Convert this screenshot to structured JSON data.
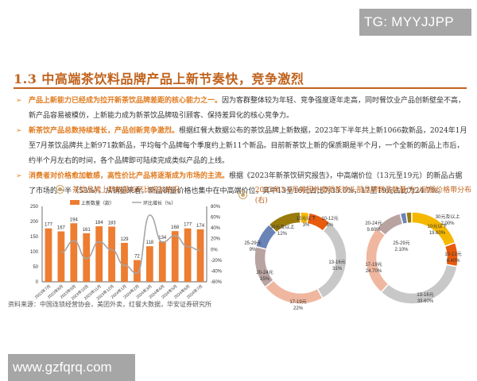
{
  "watermarks": {
    "top": "TG: MYYJJPP",
    "bottom": "www.gzfqrq.com"
  },
  "section_title": "1.3 中高端茶饮料品牌产品上新节奏快，竞争激烈",
  "bullets": [
    {
      "highlight": "产品上新能力已经成为拉开新茶饮品牌差距的核心能力之一。",
      "body": "因为客群整体较为年轻、竞争强度逐年走高，同时餐饮业产品创新壁垒不高，新产品容易被模仿，上新能力成为新茶饮品牌吸引顾客、保持差异化的核心竞争力。"
    },
    {
      "highlight": "新茶饮产品总数持续增长，产品创新竞争激烈。",
      "body": "根据红餐大数据公布的茶饮品牌上新数据，2023年下半年共上新1066款新品，2024年1月至7月茶饮品牌共上新971款新品，平均每个品牌每个季度约上新11个新品。目前新茶饮上新的保质期是半个月，一个全新的新品上市后，约半个月左右的时间，各个品牌即可陆续完成类似产品的上线。"
    },
    {
      "highlight": "消费者对价格愈加敏感，高性价比产品将逐渐成为市场的主流。",
      "body": "根据《2023年新茶饮研究报告》，中高端价位（13元至19元）的新品占据了市场的一半（53%）。从销量来看，新品销量价格也集中在中高端价位，其中13至16元占比为33.6%，17至19元占比为24.7%。"
    }
  ],
  "chart_titles": {
    "left": "茶饮品牌上新数量与环比增长情况",
    "right": "2023年3-6月美团外卖新茶饮头部品牌新品数量(左)/销量价格带分布(右)"
  },
  "source": "资料来源：中国连锁经营协会，美团外卖，红餐大数据，华安证券研究所",
  "chart_data": [
    {
      "type": "bar",
      "title": "茶饮品牌上新数量与环比增长情况",
      "categories": [
        "2023年7月",
        "2023年8月",
        "2023年9月",
        "2023年10月",
        "2023年11月",
        "2023年12月",
        "2024年1月",
        "2024年2月",
        "2024年3月",
        "2024年4月",
        "2024年5月",
        "2024年6月",
        "2024年7月"
      ],
      "series": [
        {
          "name": "上新数量（款）",
          "type": "bar",
          "axis": "left",
          "color": "#ed7d31",
          "values": [
            177,
            167,
            194,
            161,
            184,
            183,
            129,
            72,
            118,
            134,
            168,
            177,
            174
          ]
        },
        {
          "name": "环比增长（%）",
          "type": "line",
          "axis": "right",
          "color": "#a5a5a5",
          "values": [
            null,
            -5.6,
            16.2,
            -17.0,
            14.3,
            -0.5,
            -29.5,
            -44.2,
            63.9,
            13.6,
            25.4,
            5.4,
            -1.7
          ]
        }
      ],
      "ylim_left": [
        0,
        250
      ],
      "yticks_left": [
        "0",
        "50",
        "100",
        "150",
        "200",
        "250"
      ],
      "ylim_right": [
        -60,
        80
      ],
      "yticks_right": [
        "-60%",
        "-40%",
        "-20%",
        "0%",
        "20%",
        "40%",
        "60%",
        "80%"
      ],
      "legend": [
        "上新数量（款）",
        "环比增长（%）"
      ],
      "legend_position": "top",
      "grid": false
    },
    {
      "type": "pie",
      "variant": "donut",
      "title": "新品数量价格带分布(左)",
      "labels": [
        "10元以下",
        "10-12元",
        "13-16元",
        "17-19元",
        "20-24元",
        "25-29元",
        "30元及以上"
      ],
      "values": [
        3,
        8,
        31,
        22,
        15,
        9,
        12
      ],
      "value_labels": [
        "3%",
        "8%",
        "31%",
        "22%",
        "15%",
        "9%",
        "12%"
      ],
      "colors": [
        "#f5b800",
        "#e85a0c",
        "#c8c8c8",
        "#f0b7a0",
        "#b8a3a0",
        "#6a84b8",
        "#9a7b0a"
      ]
    },
    {
      "type": "pie",
      "variant": "donut",
      "title": "销量价格带分布(右)",
      "labels": [
        "10元以下",
        "10-12元",
        "13-16元",
        "17-19元",
        "20-24元",
        "25-29元",
        "30元及以上"
      ],
      "values": [
        19.6,
        8.4,
        33.6,
        24.7,
        9.6,
        2.1,
        2.0
      ],
      "value_labels": [
        "19.60%",
        "8.40%",
        "33.60%",
        "24.70%",
        "9.60%",
        "2.10%",
        "2.00%"
      ],
      "colors": [
        "#f5b800",
        "#e85a0c",
        "#c8c8c8",
        "#f0b7a0",
        "#b8a3a0",
        "#6a84b8",
        "#9a7b0a"
      ]
    }
  ]
}
